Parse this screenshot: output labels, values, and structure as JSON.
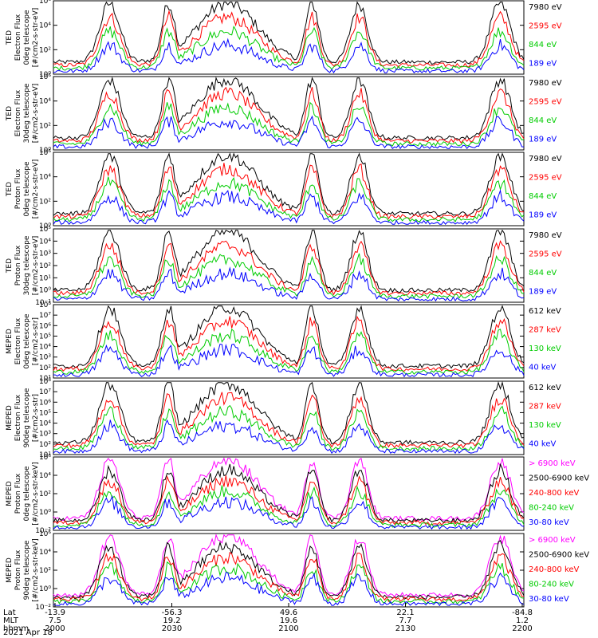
{
  "chart_data": [
    {
      "type": "line",
      "instrument": "TED",
      "ylabel": [
        "TED",
        "Electron Flux",
        "0deg telescope",
        "[#/cm2-s-str-eV]"
      ],
      "y_log_range": [
        0,
        6
      ],
      "y_ticks": [
        "10⁶",
        "10⁴",
        "10²",
        "10⁰"
      ],
      "series": [
        {
          "name": "7980 eV",
          "color": "#000000"
        },
        {
          "name": "2595 eV",
          "color": "#ff0000"
        },
        {
          "name": "844 eV",
          "color": "#00cc00"
        },
        {
          "name": "189 eV",
          "color": "#0000ff"
        }
      ]
    },
    {
      "type": "line",
      "instrument": "TED",
      "ylabel": [
        "TED",
        "Electron Flux",
        "30deg telescope",
        "[#/cm2-s-str-eV]"
      ],
      "y_log_range": [
        0,
        6
      ],
      "y_ticks": [
        "10⁶",
        "10⁴",
        "10²",
        "10⁰"
      ],
      "series": [
        {
          "name": "7980 eV",
          "color": "#000000"
        },
        {
          "name": "2595 eV",
          "color": "#ff0000"
        },
        {
          "name": "844 eV",
          "color": "#00cc00"
        },
        {
          "name": "189 eV",
          "color": "#0000ff"
        }
      ]
    },
    {
      "type": "line",
      "instrument": "TED",
      "ylabel": [
        "TED",
        "Proton Flux",
        "0deg telescope",
        "[#/cm2-s-str-eV]"
      ],
      "y_log_range": [
        0,
        6
      ],
      "y_ticks": [
        "10⁶",
        "10⁴",
        "10²",
        "10⁰"
      ],
      "series": [
        {
          "name": "7980 eV",
          "color": "#000000"
        },
        {
          "name": "2595 eV",
          "color": "#ff0000"
        },
        {
          "name": "844 eV",
          "color": "#00cc00"
        },
        {
          "name": "189 eV",
          "color": "#0000ff"
        }
      ]
    },
    {
      "type": "line",
      "instrument": "TED",
      "ylabel": [
        "TED",
        "Proton Flux",
        "30deg telescope",
        "[#/cm2-s-str-eV]"
      ],
      "y_log_range": [
        -1,
        5
      ],
      "y_ticks": [
        "10⁵",
        "10⁴",
        "10³",
        "10²",
        "10¹",
        "10⁰",
        "10⁻¹"
      ],
      "series": [
        {
          "name": "7980 eV",
          "color": "#000000"
        },
        {
          "name": "2595 eV",
          "color": "#ff0000"
        },
        {
          "name": "844 eV",
          "color": "#00cc00"
        },
        {
          "name": "189 eV",
          "color": "#0000ff"
        }
      ]
    },
    {
      "type": "line",
      "instrument": "MEPED",
      "ylabel": [
        "MEPED",
        "Electron Flux",
        "0deg telescope",
        "[#/cm2-s-str]"
      ],
      "y_log_range": [
        1,
        8
      ],
      "y_ticks": [
        "10⁸",
        "10⁷",
        "10⁶",
        "10⁵",
        "10⁴",
        "10³",
        "10²",
        "10¹"
      ],
      "series": [
        {
          "name": "612 keV",
          "color": "#000000"
        },
        {
          "name": "287 keV",
          "color": "#ff0000"
        },
        {
          "name": "130 keV",
          "color": "#00cc00"
        },
        {
          "name": "40 keV",
          "color": "#0000ff"
        }
      ]
    },
    {
      "type": "line",
      "instrument": "MEPED",
      "ylabel": [
        "MEPED",
        "Electron Flux",
        "90deg telescope",
        "[#/cm2-s-str]"
      ],
      "y_log_range": [
        1,
        8
      ],
      "y_ticks": [
        "10⁸",
        "10⁷",
        "10⁶",
        "10⁵",
        "10⁴",
        "10³",
        "10²",
        "10¹"
      ],
      "series": [
        {
          "name": "612 keV",
          "color": "#000000"
        },
        {
          "name": "287 keV",
          "color": "#ff0000"
        },
        {
          "name": "130 keV",
          "color": "#00cc00"
        },
        {
          "name": "40 keV",
          "color": "#0000ff"
        }
      ]
    },
    {
      "type": "line",
      "instrument": "MEPED",
      "ylabel": [
        "MEPED",
        "Proton Flux",
        "0deg telescope",
        "[#/cm2-s-str-keV]"
      ],
      "y_log_range": [
        -2,
        6
      ],
      "y_ticks": [
        "10⁶",
        "10⁴",
        "10²",
        "10⁰",
        "10⁻²"
      ],
      "series": [
        {
          "name": "> 6900 keV",
          "color": "#ff00ff"
        },
        {
          "name": "2500-6900 keV",
          "color": "#000000"
        },
        {
          "name": "240-800 keV",
          "color": "#ff0000"
        },
        {
          "name": "80-240 keV",
          "color": "#00cc00"
        },
        {
          "name": "30-80 keV",
          "color": "#0000ff"
        }
      ]
    },
    {
      "type": "line",
      "instrument": "MEPED",
      "ylabel": [
        "MEPED",
        "Proton Flux",
        "90deg telescope",
        "[#/cm2-s-str-keV]"
      ],
      "y_log_range": [
        -2,
        6
      ],
      "y_ticks": [
        "10⁶",
        "10⁴",
        "10²",
        "10⁰",
        "10⁻²"
      ],
      "series": [
        {
          "name": "> 6900 keV",
          "color": "#ff00ff"
        },
        {
          "name": "2500-6900 keV",
          "color": "#000000"
        },
        {
          "name": "240-800 keV",
          "color": "#ff0000"
        },
        {
          "name": "80-240 keV",
          "color": "#00cc00"
        },
        {
          "name": "30-80 keV",
          "color": "#0000ff"
        }
      ]
    }
  ],
  "x_axis": {
    "row_labels": [
      "Lat",
      "MLT",
      "hhmm"
    ],
    "ticks": [
      {
        "lat": "-13.9",
        "mlt": "7.5",
        "time": "2000"
      },
      {
        "lat": "-56.3",
        "mlt": "19.2",
        "time": "2030"
      },
      {
        "lat": "49.6",
        "mlt": "19.6",
        "time": "2100"
      },
      {
        "lat": "22.1",
        "mlt": "7.7",
        "time": "2130"
      },
      {
        "lat": "-84.8",
        "mlt": "1.2",
        "time": "2200"
      }
    ],
    "date": "2021 Apr 18"
  }
}
